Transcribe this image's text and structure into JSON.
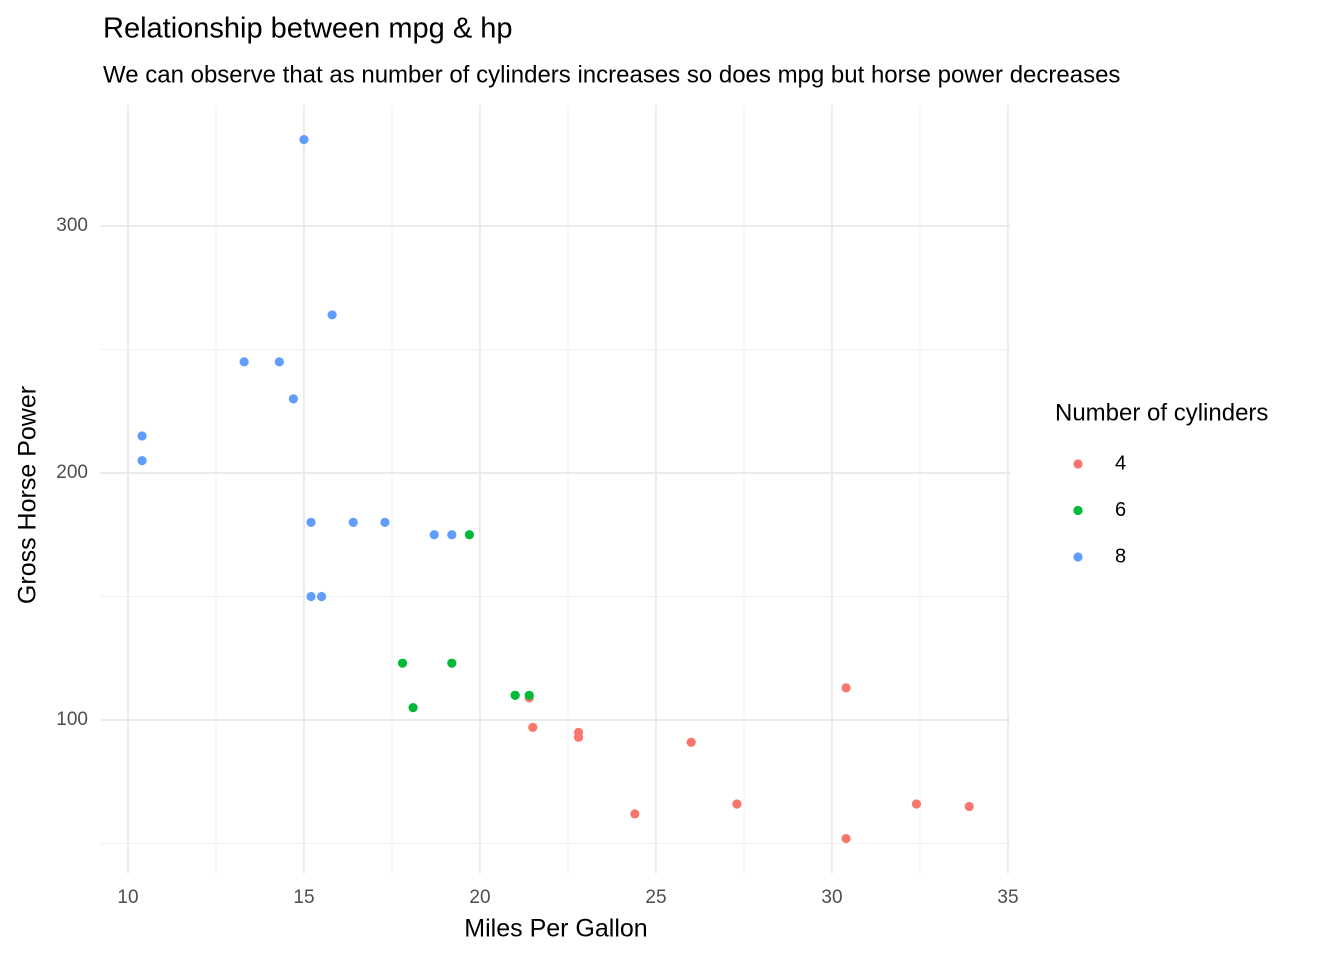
{
  "chart_data": {
    "type": "scatter",
    "title": "Relationship between mpg & hp",
    "subtitle": "We can observe that as number of cylinders increases so does mpg but horse power decreases",
    "x_label": "Miles Per Gallon",
    "y_label": "Gross Horse Power",
    "legend_title": "Number of cylinders",
    "legend_position": "right",
    "xlim": [
      9.225,
      35.075
    ],
    "ylim": [
      37.85,
      349.15
    ],
    "xticks": [
      10,
      15,
      20,
      25,
      30,
      35
    ],
    "yticks": [
      100,
      200,
      300
    ],
    "xminor": [
      12.5,
      17.5,
      22.5,
      27.5,
      32.5
    ],
    "yminor": [
      50,
      150,
      250
    ],
    "grid": true,
    "series": [
      {
        "name": "4",
        "color": "#F8766D",
        "x": [
          22.8,
          24.4,
          22.8,
          32.4,
          30.4,
          33.9,
          21.5,
          27.3,
          26.0,
          30.4,
          21.4
        ],
        "y": [
          93,
          62,
          95,
          66,
          52,
          65,
          97,
          66,
          91,
          113,
          109
        ]
      },
      {
        "name": "6",
        "color": "#00BA38",
        "x": [
          21.0,
          21.0,
          21.4,
          18.1,
          19.2,
          17.8,
          19.7
        ],
        "y": [
          110,
          110,
          110,
          105,
          123,
          123,
          175
        ]
      },
      {
        "name": "8",
        "color": "#619CFF",
        "x": [
          18.7,
          14.3,
          16.4,
          17.3,
          15.2,
          10.4,
          10.4,
          14.7,
          15.5,
          15.2,
          13.3,
          19.2,
          15.8,
          15.0
        ],
        "y": [
          175,
          245,
          180,
          180,
          180,
          205,
          215,
          230,
          150,
          150,
          245,
          175,
          264,
          335
        ]
      }
    ]
  }
}
